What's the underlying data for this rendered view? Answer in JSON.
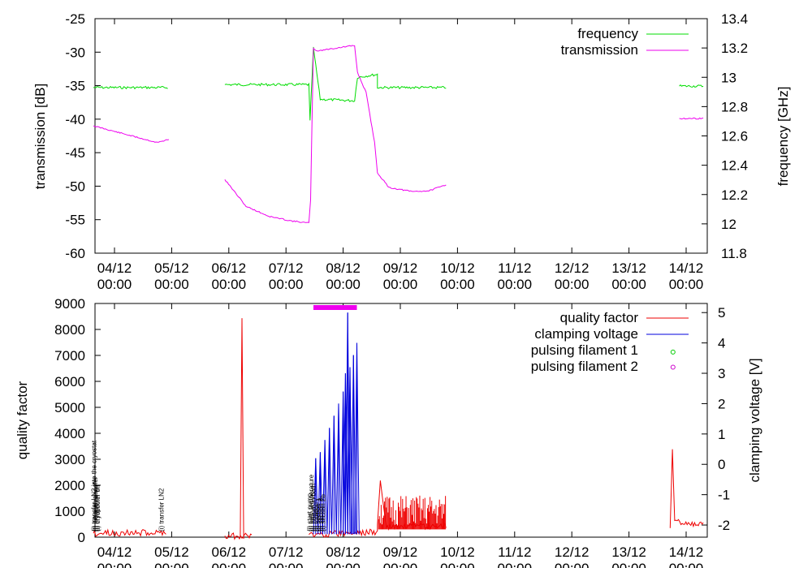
{
  "chart_data": [
    {
      "type": "line",
      "xlabel": "",
      "x_ticks": [
        "04/12 00:00",
        "05/12 00:00",
        "06/12 00:00",
        "07/12 00:00",
        "08/12 00:00",
        "09/12 00:00",
        "10/12 00:00",
        "11/12 00:00",
        "12/12 00:00",
        "13/12 00:00",
        "14/12 00:00"
      ],
      "ylabel": "transmission [dB]",
      "y2label": "frequency [GHz]",
      "ylim": [
        -60,
        -25
      ],
      "y_ticks": [
        "-60",
        "-55",
        "-50",
        "-45",
        "-40",
        "-35",
        "-30",
        "-25"
      ],
      "y2lim": [
        11.8,
        13.4
      ],
      "y2_ticks": [
        "11.8",
        "12",
        "12.2",
        "12.4",
        "12.6",
        "12.8",
        "13",
        "13.2",
        "13.4"
      ],
      "legend_position": "top-right",
      "grid": false,
      "series": [
        {
          "name": "frequency",
          "color": "#00dd00",
          "axis": "y2",
          "points": [
            [
              3.63,
              12.93
            ],
            [
              4.93,
              12.93
            ],
            [
              null,
              null
            ],
            [
              5.93,
              12.95
            ],
            [
              7.4,
              12.95
            ],
            [
              7.42,
              12.7
            ],
            [
              7.48,
              13.2
            ],
            [
              7.6,
              12.85
            ],
            [
              8.2,
              12.84
            ],
            [
              8.25,
              13.0
            ],
            [
              8.6,
              13.02
            ],
            [
              8.6,
              12.93
            ],
            [
              9.8,
              12.93
            ],
            [
              null,
              null
            ],
            [
              13.88,
              12.94
            ],
            [
              14.3,
              12.94
            ]
          ]
        },
        {
          "name": "transmission",
          "color": "#ee00ee",
          "axis": "y",
          "points": [
            [
              3.63,
              -41.0
            ],
            [
              4.75,
              -43.5
            ],
            [
              4.95,
              -43.0
            ],
            [
              null,
              null
            ],
            [
              5.93,
              -49.0
            ],
            [
              6.3,
              -53.0
            ],
            [
              6.7,
              -54.5
            ],
            [
              7.1,
              -55.2
            ],
            [
              7.4,
              -55.5
            ],
            [
              7.43,
              -52.0
            ],
            [
              7.48,
              -29.5
            ],
            [
              7.55,
              -29.8
            ],
            [
              8.2,
              -29.0
            ],
            [
              8.25,
              -33.0
            ],
            [
              8.4,
              -36.0
            ],
            [
              8.55,
              -43.5
            ],
            [
              8.6,
              -48.0
            ],
            [
              8.8,
              -50.2
            ],
            [
              9.2,
              -50.8
            ],
            [
              9.5,
              -50.7
            ],
            [
              9.8,
              -49.8
            ],
            [
              null,
              null
            ],
            [
              13.88,
              -39.9
            ],
            [
              14.3,
              -39.9
            ]
          ]
        }
      ]
    },
    {
      "type": "line",
      "xlabel": "",
      "x_ticks": [
        "04/12 00:00",
        "05/12 00:00",
        "06/12 00:00",
        "07/12 00:00",
        "08/12 00:00",
        "09/12 00:00",
        "10/12 00:00",
        "11/12 00:00",
        "12/12 00:00",
        "13/12 00:00",
        "14/12 00:00"
      ],
      "ylabel": "quality factor",
      "y2label": "clamping voltage [V]",
      "ylim": [
        0,
        9000
      ],
      "y_ticks": [
        "0",
        "1000",
        "2000",
        "3000",
        "4000",
        "5000",
        "6000",
        "7000",
        "8000",
        "9000"
      ],
      "y2lim": [
        -2.4,
        5.3
      ],
      "y2_ticks": [
        "-2",
        "-1",
        "0",
        "1",
        "2",
        "3",
        "4",
        "5"
      ],
      "legend_position": "top-right",
      "grid": false,
      "series": [
        {
          "name": "quality factor",
          "color": "#ee0000",
          "axis": "y",
          "points": [
            [
              3.63,
              150
            ],
            [
              4.9,
              180
            ],
            [
              null,
              null
            ],
            [
              5.93,
              50
            ],
            [
              6.4,
              50
            ],
            [
              null,
              null
            ],
            [
              6.2,
              0
            ],
            [
              6.23,
              8400
            ],
            [
              6.26,
              0
            ],
            [
              null,
              null
            ],
            [
              7.4,
              100
            ],
            [
              8.6,
              200
            ],
            [
              8.6,
              400
            ],
            [
              8.65,
              2200
            ],
            [
              8.75,
              400
            ],
            [
              9.8,
              400
            ],
            [
              null,
              null
            ],
            [
              13.72,
              350
            ],
            [
              13.76,
              3500
            ],
            [
              13.8,
              600
            ],
            [
              14.3,
              450
            ]
          ]
        },
        {
          "name": "clamping voltage",
          "color": "#0000dd",
          "axis": "y2",
          "peaks": [
            [
              7.52,
              0.2
            ],
            [
              7.6,
              0.4
            ],
            [
              7.68,
              0.8
            ],
            [
              7.76,
              1.2
            ],
            [
              7.84,
              1.6
            ],
            [
              7.92,
              2.0
            ],
            [
              8.0,
              2.4
            ],
            [
              8.04,
              3.0
            ],
            [
              8.08,
              5.0
            ],
            [
              8.12,
              3.2
            ],
            [
              8.18,
              3.6
            ],
            [
              8.24,
              4.0
            ]
          ],
          "base": -2.3
        },
        {
          "name": "pulsing filament 1",
          "color": "#00cc00",
          "axis": "y2",
          "points": [
            [
              13.77,
              3.7
            ]
          ]
        },
        {
          "name": "pulsing filament 2",
          "color": "#cc00cc",
          "axis": "y2",
          "points": [
            [
              13.77,
              3.2
            ]
          ]
        }
      ],
      "annotations": [
        {
          "text": "(i) transfer LN2 into the cryostat",
          "x": 3.64
        },
        {
          "text": "(i) nitrogen transfer",
          "x": 3.66
        },
        {
          "text": "(i) cryocooler on",
          "x": 3.68
        },
        {
          "text": "(i) cryocooler off",
          "x": 3.7
        },
        {
          "text": "(i) transfer LN2",
          "x": 4.82
        },
        {
          "text": "(i) start pump",
          "x": 7.41
        },
        {
          "text": "(i) bath temperature",
          "x": 7.44
        },
        {
          "text": "(i) helium in bath",
          "x": 7.47
        },
        {
          "text": "(i) rotation",
          "x": 7.52
        },
        {
          "text": "(i) section 1",
          "x": 7.56
        },
        {
          "text": "(i) section 2",
          "x": 7.6
        },
        {
          "text": "(i) section 2b",
          "x": 7.64
        }
      ],
      "marker_bar": {
        "x_start": 7.48,
        "x_end": 8.24,
        "color": "#ee00ee"
      }
    }
  ]
}
